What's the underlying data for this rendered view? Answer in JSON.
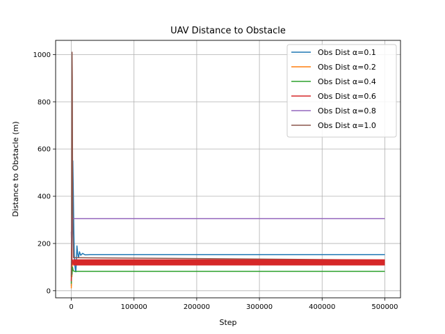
{
  "chart_data": {
    "type": "line",
    "title": "UAV Distance to Obstacle",
    "xlabel": "Step",
    "ylabel": "Distance to Obstacle (m)",
    "xlim": [
      -25000,
      525000
    ],
    "ylim": [
      -30,
      1060
    ],
    "xticks": [
      0,
      100000,
      200000,
      300000,
      400000,
      500000
    ],
    "xtick_labels": [
      "0",
      "100000",
      "200000",
      "300000",
      "400000",
      "500000"
    ],
    "yticks": [
      0,
      200,
      400,
      600,
      800,
      1000
    ],
    "ytick_labels": [
      "0",
      "200",
      "400",
      "600",
      "800",
      "1000"
    ],
    "grid": true,
    "legend_position": "top-right",
    "series": [
      {
        "name": "Obs Dist α=0.1",
        "color": "#1f77b4",
        "x": [
          0,
          800,
          1600,
          2400,
          3200,
          4000,
          4800,
          5600,
          6400,
          7200,
          8000,
          9000,
          10000,
          11500,
          13000,
          15000,
          18000,
          22000,
          30000,
          60000,
          100000,
          500000
        ],
        "y": [
          20,
          180,
          420,
          550,
          420,
          260,
          150,
          110,
          90,
          80,
          120,
          190,
          160,
          140,
          165,
          150,
          158,
          152,
          153,
          153,
          153,
          153
        ]
      },
      {
        "name": "Obs Dist α=0.2",
        "color": "#ff7f0e",
        "x": [
          0,
          500,
          1000,
          1500,
          2000,
          3000,
          500000
        ],
        "y": [
          10,
          80,
          60,
          120,
          110,
          120,
          120
        ]
      },
      {
        "name": "Obs Dist α=0.4",
        "color": "#2ca02c",
        "x": [
          0,
          600,
          1200,
          2000,
          3000,
          5000,
          8000,
          500000
        ],
        "y": [
          30,
          90,
          70,
          100,
          85,
          82,
          82,
          82
        ]
      },
      {
        "name": "Obs Dist α=0.6",
        "color": "#d62728",
        "x": [
          0,
          500,
          1200,
          2000,
          3000,
          5000,
          500000
        ],
        "y": [
          40,
          250,
          110,
          130,
          115,
          120,
          120
        ]
      },
      {
        "name": "Obs Dist α=0.8",
        "color": "#9467bd",
        "x": [
          0,
          500,
          1000,
          1500,
          2000,
          3000,
          5000,
          500000
        ],
        "y": [
          250,
          180,
          320,
          290,
          310,
          305,
          305,
          305
        ]
      },
      {
        "name": "Obs Dist α=1.0",
        "color": "#8c564b",
        "x": [
          0,
          400,
          800,
          1200,
          1600,
          2000,
          2500,
          3500,
          500000
        ],
        "y": [
          60,
          300,
          700,
          1010,
          900,
          500,
          250,
          140,
          130
        ]
      }
    ]
  }
}
